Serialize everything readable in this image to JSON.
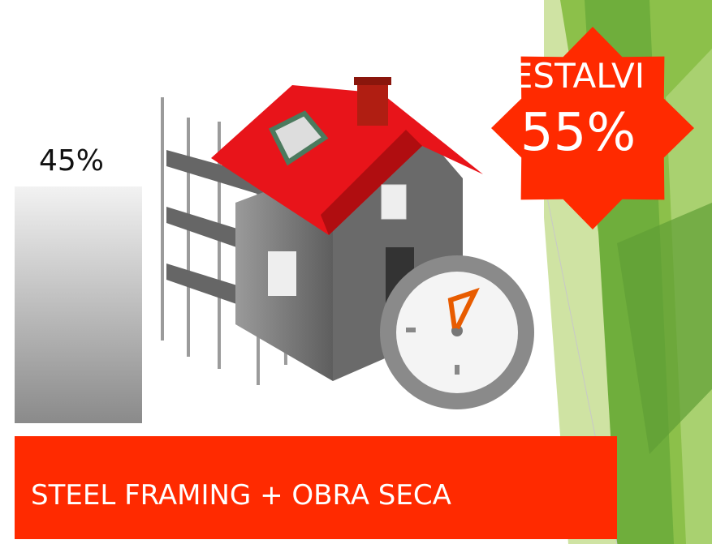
{
  "bar_label": "45%",
  "badge": {
    "title": "ESTALVI",
    "value": "55%"
  },
  "banner": "STEEL FRAMING + OBRA SECA"
}
